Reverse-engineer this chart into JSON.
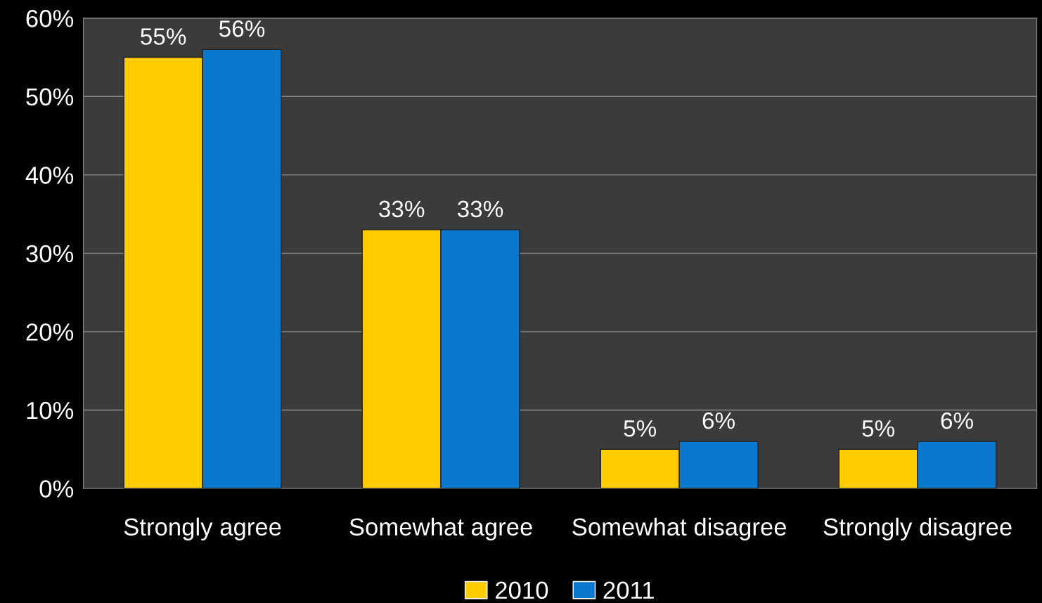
{
  "chart_data": {
    "type": "bar",
    "categories": [
      "Strongly agree",
      "Somewhat agree",
      "Somewhat disagree",
      "Strongly disagree"
    ],
    "series": [
      {
        "name": "2010",
        "color": "#ffcc00",
        "values": [
          55,
          33,
          5,
          5
        ],
        "value_labels": [
          "55%",
          "33%",
          "5%",
          "5%"
        ]
      },
      {
        "name": "2011",
        "color": "#0a78cc",
        "values": [
          56,
          33,
          6,
          6
        ],
        "value_labels": [
          "56%",
          "33%",
          "6%",
          "6%"
        ]
      }
    ],
    "ylim": [
      0,
      60
    ],
    "yticks": [
      {
        "value": 0,
        "label": "0%"
      },
      {
        "value": 10,
        "label": "10%"
      },
      {
        "value": 20,
        "label": "20%"
      },
      {
        "value": 30,
        "label": "30%"
      },
      {
        "value": 40,
        "label": "40%"
      },
      {
        "value": 50,
        "label": "50%"
      },
      {
        "value": 60,
        "label": "60%"
      }
    ],
    "grid": "y",
    "legend": "bottom"
  }
}
